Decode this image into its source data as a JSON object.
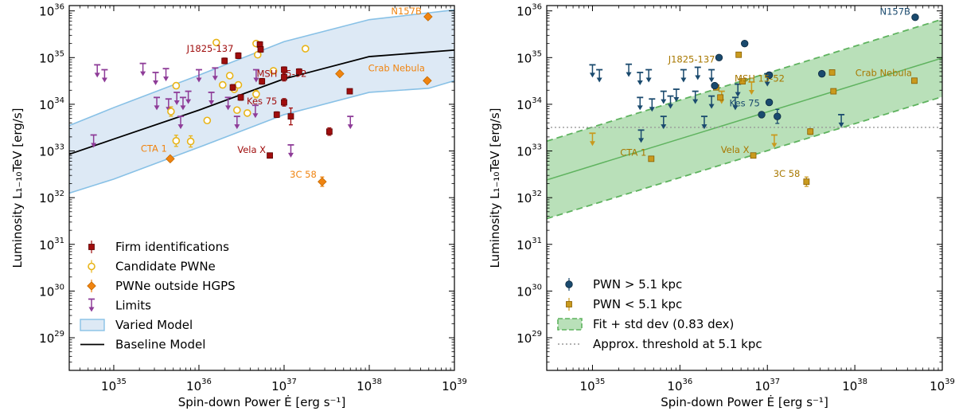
{
  "colors": {
    "firm": "#a00d0d",
    "candidate": "#e8b418",
    "outside": "#f08410",
    "limits": "#8e3c98",
    "varied_fill": "#dde9f5",
    "varied_edge": "#88c1e6",
    "baseline": "#000000",
    "far": "#1a4a6e",
    "near": "#c99a1e",
    "near_edge": "#8a5e00",
    "fit": "#5fb35f",
    "fit_fill": "#b9e0b9",
    "threshold": "#999999"
  },
  "chart_data": [
    {
      "type": "scatter",
      "panel": "left",
      "xscale": "log",
      "yscale": "log",
      "xlim": [
        3e+34,
        1e+39
      ],
      "ylim": [
        2e+28,
        1.3e+36
      ],
      "xlabel": "Spin-down Power Ė [erg s⁻¹]",
      "ylabel": "Luminosity L₁₋₁₀TeV [erg/s]",
      "x_ticks": [
        {
          "value": 1e+35,
          "base": "10",
          "exp": "35"
        },
        {
          "value": 1e+36,
          "base": "10",
          "exp": "36"
        },
        {
          "value": 1e+37,
          "base": "10",
          "exp": "37"
        },
        {
          "value": 1e+38,
          "base": "10",
          "exp": "38"
        },
        {
          "value": 1e+39,
          "base": "10",
          "exp": "39"
        }
      ],
      "y_ticks": [
        {
          "value": 1e+29,
          "base": "10",
          "exp": "29"
        },
        {
          "value": 1e+30,
          "base": "10",
          "exp": "30"
        },
        {
          "value": 1e+31,
          "base": "10",
          "exp": "31"
        },
        {
          "value": 1e+32,
          "base": "10",
          "exp": "32"
        },
        {
          "value": 1e+33,
          "base": "10",
          "exp": "33"
        },
        {
          "value": 1e+34,
          "base": "10",
          "exp": "34"
        },
        {
          "value": 1e+35,
          "base": "10",
          "exp": "35"
        },
        {
          "value": 1e+36,
          "base": "10",
          "exp": "36"
        }
      ],
      "legend_position": "lower-left",
      "legend": [
        {
          "label": "Firm identifications",
          "kind": "firm"
        },
        {
          "label": "Candidate PWNe",
          "kind": "candidate"
        },
        {
          "label": "PWNe outside HGPS",
          "kind": "outside"
        },
        {
          "label": "Limits",
          "kind": "limit"
        },
        {
          "label": "Varied Model",
          "kind": "band"
        },
        {
          "label": "Baseline Model",
          "kind": "line"
        }
      ],
      "baseline_model": [
        [
          3e+34,
          8.5e+32
        ],
        [
          1e+35,
          1.8e+33
        ],
        [
          1e+36,
          7.5e+33
        ],
        [
          1e+37,
          3.5e+34
        ],
        [
          1e+38,
          1.05e+35
        ],
        [
          1e+39,
          1.45e+35
        ]
      ],
      "varied_upper": [
        [
          3e+34,
          3.5e+33
        ],
        [
          1e+35,
          8.5e+33
        ],
        [
          1e+36,
          4.2e+34
        ],
        [
          1e+37,
          2.2e+35
        ],
        [
          1e+38,
          6.5e+35
        ],
        [
          1e+39,
          1.05e+36
        ]
      ],
      "varied_lower": [
        [
          3e+34,
          1.25e+32
        ],
        [
          1e+35,
          2.5e+32
        ],
        [
          1e+36,
          1.2e+33
        ],
        [
          1e+37,
          6e+33
        ],
        [
          1e+38,
          1.8e+34
        ],
        [
          5e+38,
          2.2e+34
        ],
        [
          1e+39,
          3.2e+34
        ]
      ],
      "firm": [
        {
          "x": 2.5e+36,
          "y": 2.3e+34,
          "e": 0.06
        },
        {
          "x": 2.9e+36,
          "y": 1.1e+35,
          "e": 0.06
        },
        {
          "x": 2e+36,
          "y": 8.5e+34,
          "e": 0.06
        },
        {
          "x": 5.2e+36,
          "y": 1.9e+35,
          "e": 0.06
        },
        {
          "x": 5.3e+36,
          "y": 1.5e+35,
          "e": 0.06
        },
        {
          "x": 5.5e+36,
          "y": 3.1e+34,
          "e": 0.06
        },
        {
          "x": 3.1e+36,
          "y": 1.4e+34,
          "e": 0.06
        },
        {
          "x": 8.2e+36,
          "y": 6e+33,
          "e": 0.06
        },
        {
          "x": 6.8e+36,
          "y": 8e+32,
          "e": 0.05
        },
        {
          "x": 1e+37,
          "y": 1.1e+34,
          "e": 0.08
        },
        {
          "x": 1e+37,
          "y": 3.8e+34,
          "e": 0.08
        },
        {
          "x": 1e+37,
          "y": 5.5e+34,
          "e": 0.06
        },
        {
          "x": 1.2e+37,
          "y": 5.5e+33,
          "e": 0.18
        },
        {
          "x": 1.5e+37,
          "y": 5e+34,
          "e": 0.06
        },
        {
          "x": 3.4e+37,
          "y": 2.6e+33,
          "e": 0.08
        },
        {
          "x": 5.9e+37,
          "y": 1.9e+34,
          "e": 0.05
        }
      ],
      "candidate": [
        {
          "x": 4.7e+35,
          "y": 7e+33,
          "e": 0.1
        },
        {
          "x": 5.4e+35,
          "y": 2.5e+34,
          "e": 0.06
        },
        {
          "x": 5.4e+35,
          "y": 1.65e+33,
          "e": 0.12
        },
        {
          "x": 8e+35,
          "y": 1.6e+33,
          "e": 0.12
        },
        {
          "x": 1.25e+36,
          "y": 4.5e+33,
          "e": 0.06
        },
        {
          "x": 1.6e+36,
          "y": 2.1e+35,
          "e": 0.04
        },
        {
          "x": 1.9e+36,
          "y": 2.6e+34,
          "e": 0.06
        },
        {
          "x": 2.3e+36,
          "y": 4.1e+34,
          "e": 0.06
        },
        {
          "x": 2.6e+36,
          "y": 2.1e+34,
          "e": 0.06
        },
        {
          "x": 2.8e+36,
          "y": 7.5e+33,
          "e": 0.06
        },
        {
          "x": 2.9e+36,
          "y": 2.6e+34,
          "e": 0.06
        },
        {
          "x": 3.7e+36,
          "y": 6.5e+33,
          "e": 0.06
        },
        {
          "x": 4.7e+36,
          "y": 2e+35,
          "e": 0.04
        },
        {
          "x": 4.9e+36,
          "y": 1.15e+35,
          "e": 0.04
        },
        {
          "x": 4.7e+36,
          "y": 1.65e+34,
          "e": 0.08
        },
        {
          "x": 7.5e+36,
          "y": 5.2e+34,
          "e": 0.05
        },
        {
          "x": 1.78e+37,
          "y": 1.55e+35,
          "e": 0.04
        }
      ],
      "outside": [
        {
          "x": 4.6e+35,
          "y": 6.8e+32,
          "e": 0.05
        },
        {
          "x": 2.8e+37,
          "y": 2.2e+32,
          "e": 0.1
        },
        {
          "x": 4.5e+37,
          "y": 4.5e+34,
          "e": 0.05
        },
        {
          "x": 4.8e+38,
          "y": 3.2e+34,
          "e": 0.05
        },
        {
          "x": 4.9e+38,
          "y": 7.5e+35,
          "e": 0.05
        }
      ],
      "limits": [
        {
          "x": 6.4e+34,
          "y": 7e+34
        },
        {
          "x": 7.8e+34,
          "y": 5.5e+34
        },
        {
          "x": 2.2e+35,
          "y": 7.5e+34
        },
        {
          "x": 3.1e+35,
          "y": 4.8e+34
        },
        {
          "x": 4.1e+35,
          "y": 5.8e+34
        },
        {
          "x": 3.2e+35,
          "y": 1.4e+34
        },
        {
          "x": 4.4e+35,
          "y": 1.3e+34
        },
        {
          "x": 5.5e+35,
          "y": 1.8e+34
        },
        {
          "x": 6.5e+35,
          "y": 1.4e+34
        },
        {
          "x": 7.5e+35,
          "y": 1.9e+34
        },
        {
          "x": 6.1e+35,
          "y": 5.5e+33
        },
        {
          "x": 1e+36,
          "y": 5.5e+34
        },
        {
          "x": 1.55e+36,
          "y": 6e+34
        },
        {
          "x": 1.4e+36,
          "y": 1.8e+34
        },
        {
          "x": 2.2e+36,
          "y": 1.4e+34
        },
        {
          "x": 2.8e+36,
          "y": 5.5e+33
        },
        {
          "x": 4.7e+36,
          "y": 5.5e+34
        },
        {
          "x": 4.6e+36,
          "y": 9.5e+33
        },
        {
          "x": 1.2e+37,
          "y": 1.35e+33
        },
        {
          "x": 6e+37,
          "y": 5.5e+33
        },
        {
          "x": 5.8e+34,
          "y": 2.2e+33
        }
      ],
      "annotations": [
        {
          "text": "N157B",
          "x": 4.9e+38,
          "y": 7.5e+35,
          "kind": "outside",
          "anchor": "end",
          "dx": -8,
          "dy": -3
        },
        {
          "text": "J1825-137",
          "x": 2.9e+36,
          "y": 1.1e+35,
          "kind": "firm",
          "anchor": "end",
          "dx": -6,
          "dy": -5
        },
        {
          "text": "MSH 15-52",
          "x": 5.3e+36,
          "y": 3.9e+34,
          "kind": "firm",
          "anchor": "start",
          "dx": -5,
          "dy": 0
        },
        {
          "text": "Crab Nebula",
          "x": 4.8e+38,
          "y": 3.2e+34,
          "kind": "outside",
          "anchor": "end",
          "dx": -3,
          "dy": -12
        },
        {
          "text": "Kes 75",
          "x": 5.5e+36,
          "y": 1e+34,
          "kind": "firm",
          "anchor": "middle",
          "dx": 0,
          "dy": 0
        },
        {
          "text": "CTA 1",
          "x": 4.6e+35,
          "y": 6.8e+32,
          "kind": "outside",
          "anchor": "end",
          "dx": -4,
          "dy": -9
        },
        {
          "text": "Vela X",
          "x": 6.8e+36,
          "y": 8e+32,
          "kind": "firm",
          "anchor": "end",
          "dx": -5,
          "dy": -3
        },
        {
          "text": "3C 58",
          "x": 2.8e+37,
          "y": 2.2e+32,
          "kind": "outside",
          "anchor": "end",
          "dx": -7,
          "dy": -5
        }
      ]
    },
    {
      "type": "scatter",
      "panel": "right",
      "xscale": "log",
      "yscale": "log",
      "xlim": [
        3e+34,
        1e+39
      ],
      "ylim": [
        2e+28,
        1.3e+36
      ],
      "xlabel": "Spin-down Power Ė [erg s⁻¹]",
      "ylabel": "Luminosity L₁₋₁₀TeV [erg/s]",
      "x_ticks": [
        {
          "value": 1e+35,
          "base": "10",
          "exp": "35"
        },
        {
          "value": 1e+36,
          "base": "10",
          "exp": "36"
        },
        {
          "value": 1e+37,
          "base": "10",
          "exp": "37"
        },
        {
          "value": 1e+38,
          "base": "10",
          "exp": "38"
        },
        {
          "value": 1e+39,
          "base": "10",
          "exp": "39"
        }
      ],
      "y_ticks": [
        {
          "value": 1e+29,
          "base": "10",
          "exp": "29"
        },
        {
          "value": 1e+30,
          "base": "10",
          "exp": "30"
        },
        {
          "value": 1e+31,
          "base": "10",
          "exp": "31"
        },
        {
          "value": 1e+32,
          "base": "10",
          "exp": "32"
        },
        {
          "value": 1e+33,
          "base": "10",
          "exp": "33"
        },
        {
          "value": 1e+34,
          "base": "10",
          "exp": "34"
        },
        {
          "value": 1e+35,
          "base": "10",
          "exp": "35"
        },
        {
          "value": 1e+36,
          "base": "10",
          "exp": "36"
        }
      ],
      "legend_position": "lower-left",
      "legend": [
        {
          "label": "PWN > 5.1 kpc",
          "kind": "far"
        },
        {
          "label": "PWN < 5.1 kpc",
          "kind": "near"
        },
        {
          "label": "Fit + std dev (0.83 dex)",
          "kind": "fitband"
        },
        {
          "label": "Approx. threshold at 5.1 kpc",
          "kind": "threshold"
        }
      ],
      "fit_line": [
        [
          3e+34,
          2.4e+32
        ],
        [
          1e+39,
          9.8e+34
        ]
      ],
      "fit_std_dex": 0.83,
      "threshold_y": 3.2e+33,
      "far": [
        {
          "x": 5.5e+36,
          "y": 2e+35,
          "e": 0.04
        },
        {
          "x": 2.8e+36,
          "y": 1e+35,
          "e": 0.04
        },
        {
          "x": 2.5e+36,
          "y": 2.5e+34,
          "e": 0.04
        },
        {
          "x": 1.05e+37,
          "y": 4.2e+34,
          "e": 0.06
        },
        {
          "x": 4.2e+37,
          "y": 4.5e+34,
          "e": 0.05
        },
        {
          "x": 1.05e+37,
          "y": 1.1e+34,
          "e": 0.06
        },
        {
          "x": 8.6e+36,
          "y": 6e+33,
          "e": 0.05
        },
        {
          "x": 1.3e+37,
          "y": 5.5e+33,
          "e": 0.15
        },
        {
          "x": 4.9e+38,
          "y": 7.3e+35,
          "e": 0.04
        }
      ],
      "near": [
        {
          "x": 4.7e+36,
          "y": 1.15e+35,
          "e": 0.05
        },
        {
          "x": 5.2e+36,
          "y": 3.1e+34,
          "e": 0.05
        },
        {
          "x": 5.5e+37,
          "y": 4.8e+34,
          "e": 0.05
        },
        {
          "x": 2.9e+36,
          "y": 1.4e+34,
          "e": 0.05
        },
        {
          "x": 2.6e+36,
          "y": 2.3e+34,
          "e": 0.05
        },
        {
          "x": 5.7e+37,
          "y": 1.9e+34,
          "e": 0.05
        },
        {
          "x": 3.1e+37,
          "y": 2.6e+33,
          "e": 0.06
        },
        {
          "x": 6.9e+36,
          "y": 8e+32,
          "e": 0.05
        },
        {
          "x": 4.7e+35,
          "y": 6.8e+32,
          "e": 0.05
        },
        {
          "x": 2.8e+37,
          "y": 2.2e+32,
          "e": 0.1
        },
        {
          "x": 4.8e+38,
          "y": 3.2e+34,
          "e": 0.05
        }
      ],
      "far_limits": [
        {
          "x": 1e+35,
          "y": 7e+34
        },
        {
          "x": 1.2e+35,
          "y": 5.5e+34
        },
        {
          "x": 2.6e+35,
          "y": 7.2e+34
        },
        {
          "x": 3.5e+35,
          "y": 4.8e+34
        },
        {
          "x": 4.4e+35,
          "y": 5.5e+34
        },
        {
          "x": 3.5e+35,
          "y": 1.4e+34
        },
        {
          "x": 4.8e+35,
          "y": 1.3e+34
        },
        {
          "x": 6.5e+35,
          "y": 1.9e+34
        },
        {
          "x": 7.8e+35,
          "y": 1.5e+34
        },
        {
          "x": 9.1e+35,
          "y": 2.1e+34
        },
        {
          "x": 6.5e+35,
          "y": 5.5e+33
        },
        {
          "x": 1.1e+36,
          "y": 5.5e+34
        },
        {
          "x": 1.6e+36,
          "y": 6.2e+34
        },
        {
          "x": 1.5e+36,
          "y": 1.9e+34
        },
        {
          "x": 2.3e+36,
          "y": 5.5e+34
        },
        {
          "x": 2.3e+36,
          "y": 1.5e+34
        },
        {
          "x": 4.6e+36,
          "y": 2.7e+34
        },
        {
          "x": 4.3e+36,
          "y": 1.4e+34
        },
        {
          "x": 1.9e+36,
          "y": 5.5e+33
        },
        {
          "x": 1e+37,
          "y": 4.5e+34
        },
        {
          "x": 7e+37,
          "y": 6e+33
        },
        {
          "x": 3.6e+35,
          "y": 2.8e+33
        }
      ],
      "near_limits": [
        {
          "x": 1e+35,
          "y": 2.4e+33
        },
        {
          "x": 3e+36,
          "y": 1.9e+34
        },
        {
          "x": 6.6e+36,
          "y": 3e+34
        },
        {
          "x": 1.2e+37,
          "y": 2.2e+33
        }
      ],
      "annotations": [
        {
          "text": "N157B",
          "x": 4.9e+38,
          "y": 7.3e+35,
          "kind": "far",
          "anchor": "end",
          "dx": -6,
          "dy": -3
        },
        {
          "text": "J1825-137",
          "x": 2.8e+36,
          "y": 1e+35,
          "kind": "near",
          "anchor": "end",
          "dx": -5,
          "dy": 6
        },
        {
          "text": "MSH 15-52",
          "x": 5.2e+36,
          "y": 3.9e+34,
          "kind": "near",
          "anchor": "start",
          "dx": -10,
          "dy": 6
        },
        {
          "text": "Crab Nebula",
          "x": 4.8e+38,
          "y": 3.2e+34,
          "kind": "near",
          "anchor": "end",
          "dx": -3,
          "dy": -6
        },
        {
          "text": "Kes 75",
          "x": 5.5e+36,
          "y": 9e+33,
          "kind": "far",
          "anchor": "middle",
          "dx": 0,
          "dy": 0
        },
        {
          "text": "CTA 1",
          "x": 4.7e+35,
          "y": 6.8e+32,
          "kind": "near",
          "anchor": "end",
          "dx": -6,
          "dy": -4
        },
        {
          "text": "Vela X",
          "x": 6.9e+36,
          "y": 8e+32,
          "kind": "near",
          "anchor": "end",
          "dx": -5,
          "dy": -3
        },
        {
          "text": "3C 58",
          "x": 2.8e+37,
          "y": 2.2e+32,
          "kind": "near",
          "anchor": "end",
          "dx": -8,
          "dy": -6
        }
      ]
    }
  ]
}
